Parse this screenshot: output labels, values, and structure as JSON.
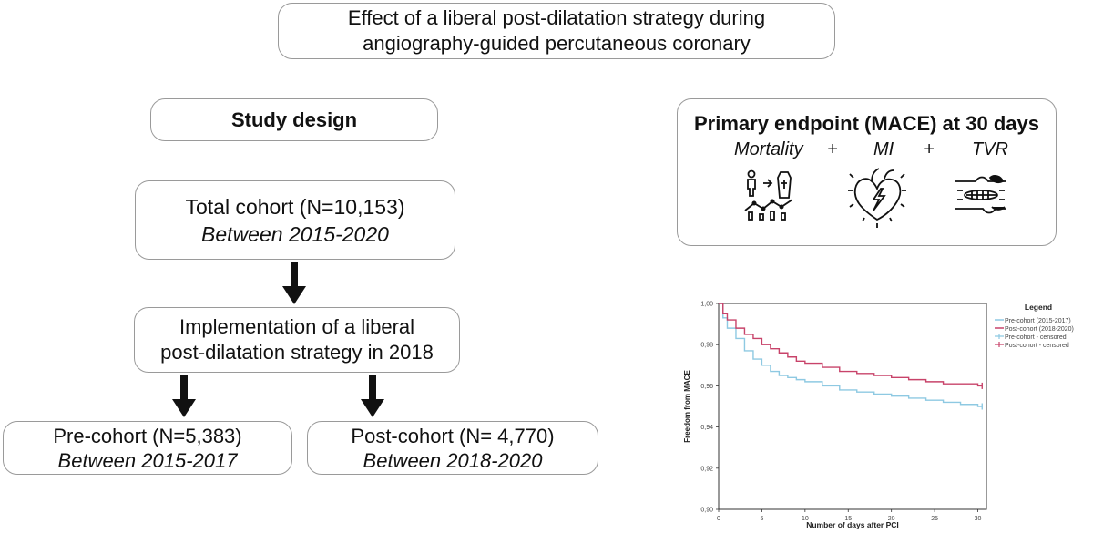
{
  "title": "Effect of a liberal post-dilatation strategy during angiography-guided percutaneous coronary",
  "study_design": {
    "label": "Study design",
    "total": {
      "line1": "Total cohort (N=10,153)",
      "line2": "Between 2015-2020"
    },
    "implementation": {
      "line1": "Implementation of a liberal",
      "line2": "post-dilatation strategy in 2018"
    },
    "pre": {
      "line1": "Pre-cohort (N=5,383)",
      "line2": "Between 2015-2017"
    },
    "post": {
      "line1": "Post-cohort (N= 4,770)",
      "line2": "Between 2018-2020"
    }
  },
  "endpoint": {
    "title": "Primary endpoint (MACE) at 30 days",
    "components": [
      "Mortality",
      "+",
      "MI",
      "+",
      "TVR"
    ],
    "icons": [
      "mortality-icon",
      "heart-icon",
      "stent-vessel-icon"
    ]
  },
  "colors": {
    "pre": "#8ec9e2",
    "post": "#c8436a",
    "border": "#9a9a9a"
  },
  "chart_data": {
    "type": "line",
    "xlabel": "Number of days after PCI",
    "ylabel": "Freedom from MACE",
    "xlim": [
      0,
      31
    ],
    "ylim": [
      0.9,
      1.0
    ],
    "x_ticks": [
      0,
      5,
      10,
      15,
      20,
      25,
      30
    ],
    "y_ticks": [
      "0,90",
      "0,92",
      "0,94",
      "0,96",
      "0,98",
      "1,00"
    ],
    "legend": {
      "title": "Legend",
      "position": "top-right",
      "entries": [
        "Pre-cohort (2015-2017)",
        "Post-cohort (2018-2020)",
        "Pre-cohort - censored",
        "Post-cohort - censored"
      ]
    },
    "series": [
      {
        "name": "Pre-cohort (2015-2017)",
        "x": [
          0,
          0.5,
          1,
          2,
          3,
          4,
          5,
          6,
          7,
          8,
          9,
          10,
          12,
          14,
          16,
          18,
          20,
          22,
          24,
          26,
          28,
          30,
          30.5
        ],
        "y": [
          1.0,
          0.993,
          0.988,
          0.983,
          0.977,
          0.973,
          0.97,
          0.967,
          0.965,
          0.964,
          0.963,
          0.962,
          0.96,
          0.958,
          0.957,
          0.956,
          0.955,
          0.954,
          0.953,
          0.952,
          0.951,
          0.95,
          0.95
        ]
      },
      {
        "name": "Post-cohort (2018-2020)",
        "x": [
          0,
          0.5,
          1,
          2,
          3,
          4,
          5,
          6,
          7,
          8,
          9,
          10,
          12,
          14,
          16,
          18,
          20,
          22,
          24,
          26,
          28,
          30,
          30.5
        ],
        "y": [
          1.0,
          0.995,
          0.992,
          0.988,
          0.985,
          0.983,
          0.98,
          0.978,
          0.976,
          0.974,
          0.972,
          0.971,
          0.969,
          0.967,
          0.966,
          0.965,
          0.964,
          0.963,
          0.962,
          0.961,
          0.961,
          0.96,
          0.96
        ]
      }
    ]
  }
}
